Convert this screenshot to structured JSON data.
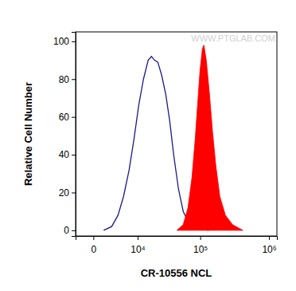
{
  "chart_data": {
    "type": "line",
    "x_label": "CR-10556 NCL",
    "y_label": "Relative Cell Number",
    "annotations": [
      "WWW.PTGLAB.COM"
    ],
    "log": "x",
    "xlim": [
      -2400,
      1300000
    ],
    "xticks": [
      0,
      {
        "value": 10000,
        "label": "10⁴"
      },
      {
        "value": 100000,
        "label": "10⁵"
      },
      {
        "value": 1000000,
        "label": "10⁶"
      }
    ],
    "ylim": [
      -3,
      105
    ],
    "yticks": [
      0,
      20,
      40,
      60,
      80,
      100
    ],
    "series": [
      {
        "type": "line",
        "color": "#1a1a8c",
        "x": [
          1220,
          2500,
          3790,
          5150,
          6800,
          8480,
          10450,
          12750,
          15400,
          17500,
          19750,
          22300,
          25800,
          29900,
          34500,
          39800,
          47100,
          55700,
          69400,
          96300,
          133000
        ],
        "values": [
          0,
          2,
          8,
          18,
          32,
          48,
          66,
          80,
          90,
          92,
          90,
          89,
          82,
          72,
          58,
          40,
          22,
          10,
          3,
          1,
          0
        ]
      },
      {
        "type": "area",
        "color": "#ff0000",
        "x": [
          44500,
          55700,
          65700,
          75400,
          84100,
          91200,
          99000,
          107500,
          113400,
          123000,
          137000,
          152000,
          170000,
          194000,
          234000,
          297000,
          420000
        ],
        "values": [
          0,
          3,
          12,
          28,
          48,
          66,
          84,
          96,
          98,
          90,
          72,
          52,
          34,
          18,
          8,
          3,
          0
        ]
      }
    ]
  }
}
